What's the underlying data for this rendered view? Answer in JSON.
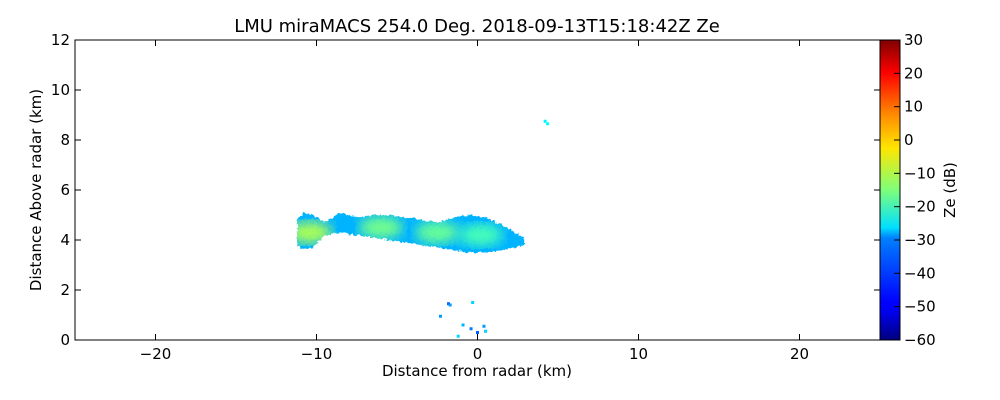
{
  "chart_data": {
    "type": "heatmap",
    "title": "LMU miraMACS 254.0 Deg. 2018-09-13T15:18:42Z  Ze",
    "xlabel": "Distance from radar (km)",
    "ylabel": "Distance Above radar  (km)",
    "xlim": [
      -25,
      25
    ],
    "ylim": [
      0,
      12
    ],
    "xticks": [
      -20,
      -10,
      0,
      10,
      20
    ],
    "xtick_labels": [
      "−20",
      "−10",
      "0",
      "10",
      "20"
    ],
    "yticks": [
      0,
      2,
      4,
      6,
      8,
      10,
      12
    ],
    "ytick_labels": [
      "0",
      "2",
      "4",
      "6",
      "8",
      "10",
      "12"
    ],
    "colorbar": {
      "label": "Ze (dB)",
      "range": [
        -60,
        30
      ],
      "ticks": [
        30,
        20,
        10,
        0,
        -10,
        -20,
        -30,
        -40,
        -50,
        -60
      ],
      "tick_labels": [
        "30",
        "20",
        "10",
        "0",
        "−10",
        "−20",
        "−30",
        "−40",
        "−50",
        "−60"
      ],
      "colormap": "jet"
    },
    "grid": false,
    "regions": [
      {
        "name": "main cloud layer",
        "profile_x": [
          -11.2,
          -10.8,
          -10.2,
          -9.5,
          -8.5,
          -7.5,
          -6.5,
          -5.5,
          -4.5,
          -3.5,
          -2.5,
          -1.5,
          -0.5,
          0.5,
          1.5,
          2.3,
          2.9
        ],
        "profile_top": [
          4.8,
          5.1,
          5.0,
          4.7,
          5.1,
          4.9,
          5.0,
          5.0,
          4.9,
          4.8,
          4.7,
          4.9,
          5.0,
          4.9,
          4.6,
          4.3,
          4.1
        ],
        "profile_bottom": [
          3.8,
          3.6,
          3.7,
          4.2,
          4.3,
          4.2,
          4.1,
          4.0,
          3.9,
          3.8,
          3.7,
          3.6,
          3.5,
          3.5,
          3.6,
          3.7,
          3.8
        ],
        "ze_core_dB": -12,
        "ze_edge_dB": -33
      }
    ],
    "blobs": [
      {
        "x": -10.4,
        "y": 4.3,
        "ze_dB": -11
      },
      {
        "x": -6.0,
        "y": 4.5,
        "ze_dB": -16
      },
      {
        "x": -2.5,
        "y": 4.3,
        "ze_dB": -17
      },
      {
        "x": 0.2,
        "y": 4.2,
        "ze_dB": -20
      }
    ],
    "speckles": [
      {
        "x": 4.2,
        "y": 8.75,
        "ze_dB": -27
      },
      {
        "x": 4.35,
        "y": 8.65,
        "ze_dB": -26
      },
      {
        "x": -1.8,
        "y": 1.45,
        "ze_dB": -40
      },
      {
        "x": -1.7,
        "y": 1.4,
        "ze_dB": -35
      },
      {
        "x": -0.3,
        "y": 1.5,
        "ze_dB": -30
      },
      {
        "x": -2.3,
        "y": 0.95,
        "ze_dB": -35
      },
      {
        "x": -1.2,
        "y": 0.15,
        "ze_dB": -30
      },
      {
        "x": -0.9,
        "y": 0.6,
        "ze_dB": -33
      },
      {
        "x": 0.0,
        "y": 0.3,
        "ze_dB": -40
      },
      {
        "x": 0.4,
        "y": 0.55,
        "ze_dB": -35
      },
      {
        "x": 0.5,
        "y": 0.35,
        "ze_dB": -30
      },
      {
        "x": -0.4,
        "y": 0.45,
        "ze_dB": -38
      }
    ]
  }
}
